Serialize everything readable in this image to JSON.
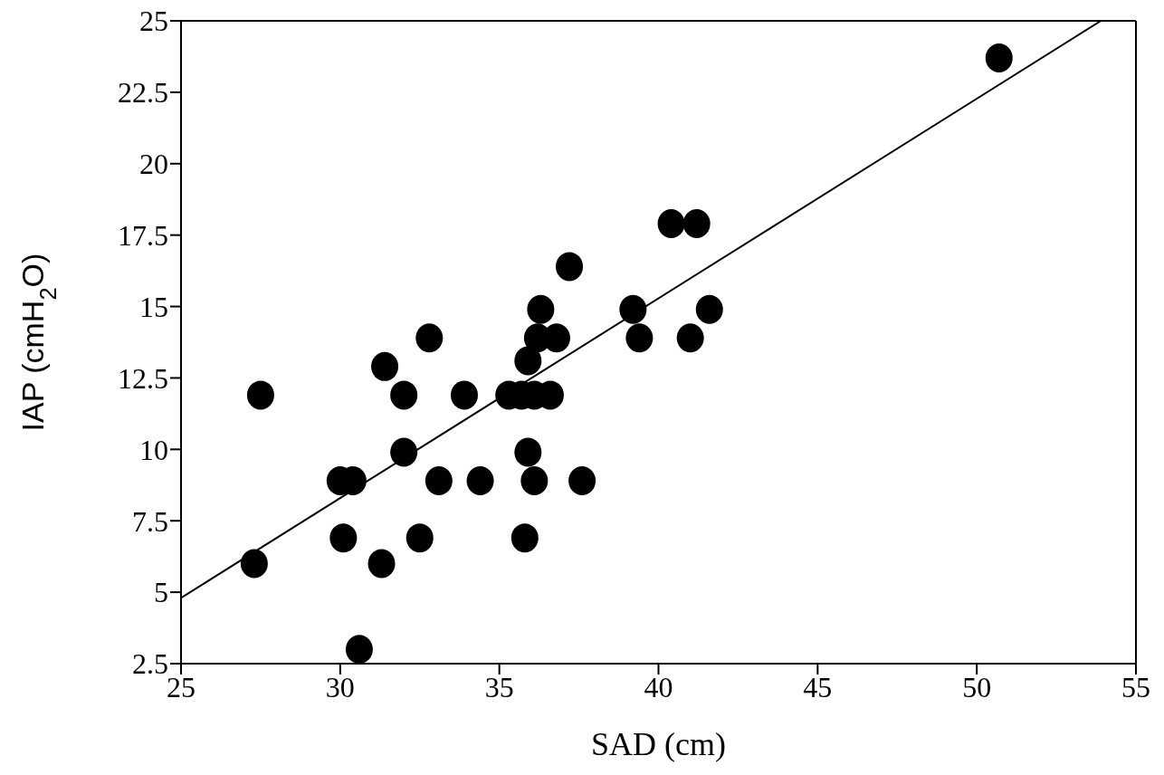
{
  "chart_data": {
    "type": "scatter",
    "xlabel": "SAD (cm)",
    "ylabel": "IAP (cmH$_{2}$O)",
    "xlim": [
      25,
      55
    ],
    "xticks": [
      25,
      30,
      35,
      40,
      45,
      50,
      55
    ],
    "ylim": [
      2.5,
      25
    ],
    "yticks": [
      2.5,
      5,
      7.5,
      10,
      12.5,
      15,
      17.5,
      20,
      22.5,
      25
    ],
    "marker": "circle",
    "series": [
      {
        "color": "#000000",
        "x": [
          50.7,
          40.4,
          41.2,
          37.2,
          36.3,
          39.2,
          41.6,
          39.4,
          41.0,
          36.8,
          36.2,
          35.9,
          32.8,
          31.4,
          27.5,
          32.0,
          33.9,
          35.3,
          35.7,
          36.1,
          36.6,
          35.9,
          32.0,
          30.0,
          30.4,
          33.1,
          34.4,
          36.1,
          37.6,
          30.1,
          32.5,
          35.8,
          31.3,
          27.3,
          30.6
        ],
        "values": [
          23.7,
          17.9,
          17.9,
          16.4,
          14.9,
          14.9,
          14.9,
          13.9,
          13.9,
          13.9,
          13.9,
          13.1,
          13.9,
          12.9,
          11.9,
          11.9,
          11.9,
          11.9,
          11.9,
          11.9,
          11.9,
          9.9,
          9.9,
          8.9,
          8.9,
          8.9,
          8.9,
          8.9,
          8.9,
          6.9,
          6.9,
          6.9,
          6.0,
          6.0,
          3.0
        ]
      },
      {
        "type": "line",
        "color": "#000000",
        "marker": "none",
        "x": [
          25,
          53.9
        ],
        "values": [
          4.8,
          25
        ]
      }
    ]
  }
}
